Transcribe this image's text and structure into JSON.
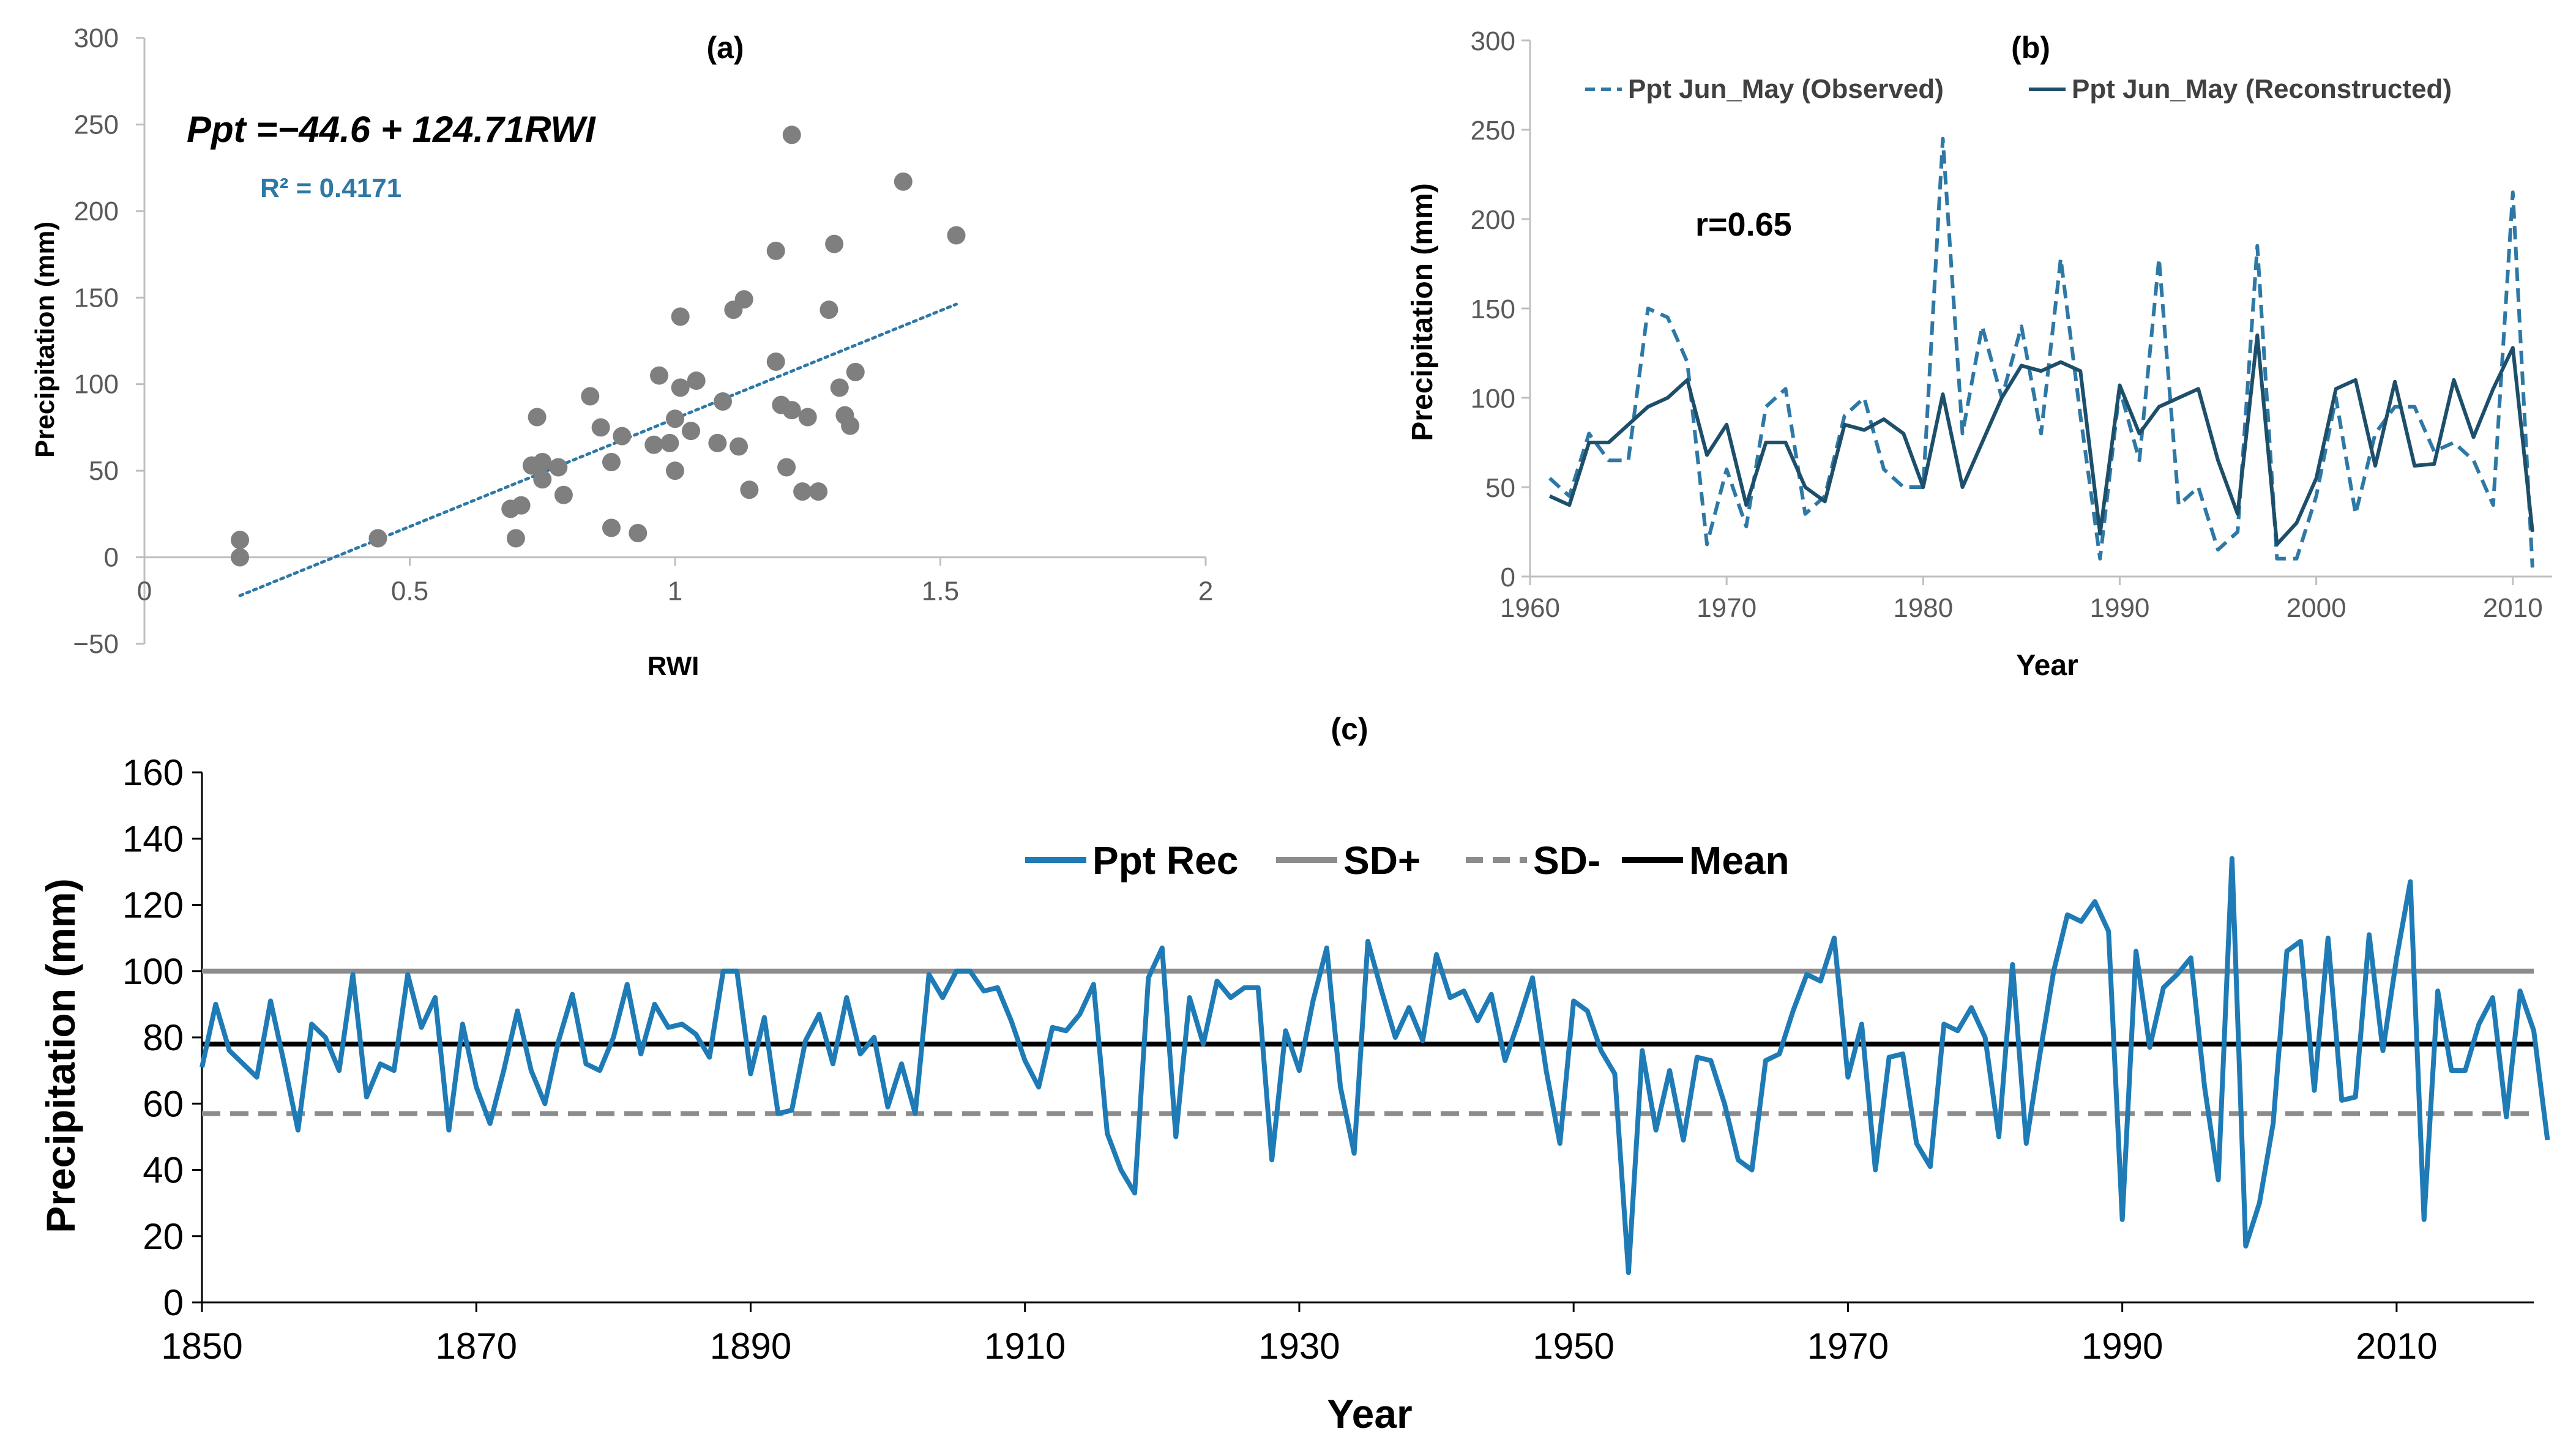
{
  "chart_data": [
    {
      "id": "a",
      "type": "scatter",
      "title": "(a)",
      "xlabel": "RWI",
      "ylabel": "Precipitation (mm)",
      "xlim": [
        0,
        2
      ],
      "ylim": [
        -50,
        300
      ],
      "xticks": [
        "0",
        "0.5",
        "1",
        "1.5",
        "2"
      ],
      "yticks": [
        "300",
        "250",
        "200",
        "150",
        "100",
        "50",
        "0",
        "−50"
      ],
      "equation": "Ppt =−44.6 + 124.71RWI",
      "r2": "R² = 0.4171",
      "trendline": {
        "intercept": -44.6,
        "slope": 124.71,
        "x_range": [
          0.18,
          1.53
        ]
      },
      "points": [
        [
          0.18,
          10
        ],
        [
          0.18,
          0
        ],
        [
          0.44,
          11
        ],
        [
          0.69,
          28
        ],
        [
          0.7,
          11
        ],
        [
          0.71,
          30
        ],
        [
          0.73,
          53
        ],
        [
          0.74,
          81
        ],
        [
          0.75,
          55
        ],
        [
          0.75,
          45
        ],
        [
          0.78,
          52
        ],
        [
          0.79,
          36
        ],
        [
          0.84,
          93
        ],
        [
          0.86,
          75
        ],
        [
          0.88,
          55
        ],
        [
          0.88,
          17
        ],
        [
          0.9,
          70
        ],
        [
          0.93,
          14
        ],
        [
          0.96,
          65
        ],
        [
          0.97,
          105
        ],
        [
          0.99,
          66
        ],
        [
          1.0,
          50
        ],
        [
          1.0,
          80
        ],
        [
          1.01,
          98
        ],
        [
          1.01,
          139
        ],
        [
          1.03,
          73
        ],
        [
          1.04,
          102
        ],
        [
          1.08,
          66
        ],
        [
          1.09,
          90
        ],
        [
          1.11,
          143
        ],
        [
          1.12,
          64
        ],
        [
          1.13,
          149
        ],
        [
          1.14,
          39
        ],
        [
          1.19,
          177
        ],
        [
          1.19,
          113
        ],
        [
          1.2,
          88
        ],
        [
          1.21,
          52
        ],
        [
          1.22,
          244
        ],
        [
          1.22,
          85
        ],
        [
          1.24,
          38
        ],
        [
          1.25,
          81
        ],
        [
          1.27,
          38
        ],
        [
          1.29,
          143
        ],
        [
          1.3,
          181
        ],
        [
          1.31,
          98
        ],
        [
          1.32,
          82
        ],
        [
          1.33,
          76
        ],
        [
          1.34,
          107
        ],
        [
          1.43,
          217
        ],
        [
          1.53,
          186
        ]
      ]
    },
    {
      "id": "b",
      "type": "line",
      "title": "(b)",
      "xlabel": "Year",
      "ylabel": "Precipitation (mm)",
      "xlim": [
        1960,
        2012
      ],
      "ylim": [
        0,
        300
      ],
      "xticks": [
        "1960",
        "1970",
        "1980",
        "1990",
        "2000",
        "2010"
      ],
      "yticks": [
        "300",
        "250",
        "200",
        "150",
        "100",
        "50",
        "0"
      ],
      "annotation": "r=0.65",
      "series": [
        {
          "name": "Ppt Jun_May (Observed)",
          "style": "dashed",
          "color": "#2e78a6",
          "x": [
            1961,
            1962,
            1963,
            1964,
            1965,
            1966,
            1967,
            1968,
            1969,
            1970,
            1971,
            1972,
            1973,
            1974,
            1975,
            1976,
            1977,
            1978,
            1979,
            1980,
            1981,
            1982,
            1983,
            1984,
            1985,
            1986,
            1987,
            1988,
            1989,
            1990,
            1991,
            1992,
            1993,
            1994,
            1995,
            1996,
            1997,
            1998,
            1999,
            2000,
            2001,
            2002,
            2003,
            2004,
            2005,
            2006,
            2007,
            2008,
            2009,
            2010,
            2011
          ],
          "y": [
            55,
            45,
            80,
            65,
            65,
            150,
            145,
            120,
            18,
            60,
            28,
            95,
            105,
            35,
            45,
            90,
            100,
            60,
            50,
            50,
            245,
            80,
            140,
            100,
            140,
            80,
            178,
            90,
            10,
            105,
            65,
            178,
            40,
            50,
            15,
            25,
            185,
            10,
            10,
            45,
            100,
            35,
            80,
            95,
            95,
            70,
            75,
            65,
            40,
            215,
            5
          ]
        },
        {
          "name": "Ppt Jun_May (Reconstructed)",
          "style": "solid",
          "color": "#1d4f6b",
          "x": [
            1961,
            1962,
            1963,
            1964,
            1965,
            1966,
            1967,
            1968,
            1969,
            1970,
            1971,
            1972,
            1973,
            1974,
            1975,
            1976,
            1977,
            1978,
            1979,
            1980,
            1981,
            1982,
            1983,
            1984,
            1985,
            1986,
            1987,
            1988,
            1989,
            1990,
            1991,
            1992,
            1993,
            1994,
            1995,
            1996,
            1997,
            1998,
            1999,
            2000,
            2001,
            2002,
            2003,
            2004,
            2005,
            2006,
            2007,
            2008,
            2009,
            2010,
            2011
          ],
          "y": [
            45,
            40,
            75,
            75,
            85,
            95,
            100,
            110,
            68,
            85,
            40,
            75,
            75,
            50,
            42,
            85,
            82,
            88,
            80,
            50,
            102,
            50,
            75,
            100,
            118,
            115,
            120,
            115,
            24,
            107,
            80,
            95,
            100,
            105,
            65,
            35,
            135,
            18,
            30,
            55,
            105,
            110,
            62,
            109,
            62,
            63,
            110,
            78,
            105,
            128,
            25
          ]
        }
      ]
    },
    {
      "id": "c",
      "type": "line",
      "title": "(c)",
      "xlabel": "Year",
      "ylabel": "Precipitation (mm)",
      "xlim": [
        1850,
        2020
      ],
      "ylim": [
        0,
        160
      ],
      "xticks": [
        "1850",
        "1870",
        "1890",
        "1910",
        "1930",
        "1950",
        "1970",
        "1990",
        "2010"
      ],
      "yticks": [
        "160",
        "140",
        "120",
        "100",
        "80",
        "60",
        "40",
        "20",
        "0"
      ],
      "reference_lines": [
        {
          "name": "SD+",
          "value": 100,
          "style": "solid",
          "color": "#8c8c8c"
        },
        {
          "name": "SD-",
          "value": 57,
          "style": "dashed",
          "color": "#8c8c8c"
        },
        {
          "name": "Mean",
          "value": 78,
          "style": "solid",
          "color": "#000000"
        }
      ],
      "legend": [
        "Ppt Rec",
        "SD+",
        "SD-",
        "Mean"
      ],
      "series": [
        {
          "name": "Ppt Rec",
          "color": "#1f7bb6",
          "x_start": 1850,
          "x_step": 1,
          "values": [
            71,
            90,
            76,
            72,
            68,
            91,
            72,
            52,
            84,
            80,
            70,
            99,
            62,
            72,
            70,
            99,
            83,
            92,
            52,
            84,
            65,
            54,
            70,
            88,
            70,
            60,
            79,
            93,
            72,
            70,
            80,
            96,
            75,
            90,
            83,
            84,
            81,
            74,
            100,
            100,
            69,
            86,
            57,
            58,
            79,
            87,
            72,
            92,
            75,
            80,
            59,
            72,
            57,
            99,
            92,
            100,
            100,
            94,
            95,
            85,
            73,
            65,
            83,
            82,
            87,
            96,
            51,
            40,
            33,
            98,
            107,
            50,
            92,
            78,
            97,
            92,
            95,
            95,
            43,
            82,
            70,
            91,
            107,
            65,
            45,
            109,
            94,
            80,
            89,
            79,
            105,
            92,
            94,
            85,
            93,
            73,
            85,
            98,
            70,
            48,
            91,
            88,
            76,
            69,
            9,
            76,
            52,
            70,
            49,
            74,
            73,
            60,
            43,
            40,
            73,
            75,
            88,
            99,
            97,
            110,
            68,
            84,
            40,
            74,
            75,
            48,
            41,
            84,
            82,
            89,
            80,
            50,
            102,
            48,
            75,
            100,
            117,
            115,
            121,
            112,
            25,
            106,
            77,
            95,
            99,
            104,
            65,
            37,
            134,
            17,
            30,
            54,
            106,
            109,
            64,
            110,
            61,
            62,
            111,
            76,
            104,
            127,
            25,
            94,
            70,
            70,
            84,
            92,
            56,
            94,
            82,
            49
          ]
        }
      ]
    }
  ]
}
